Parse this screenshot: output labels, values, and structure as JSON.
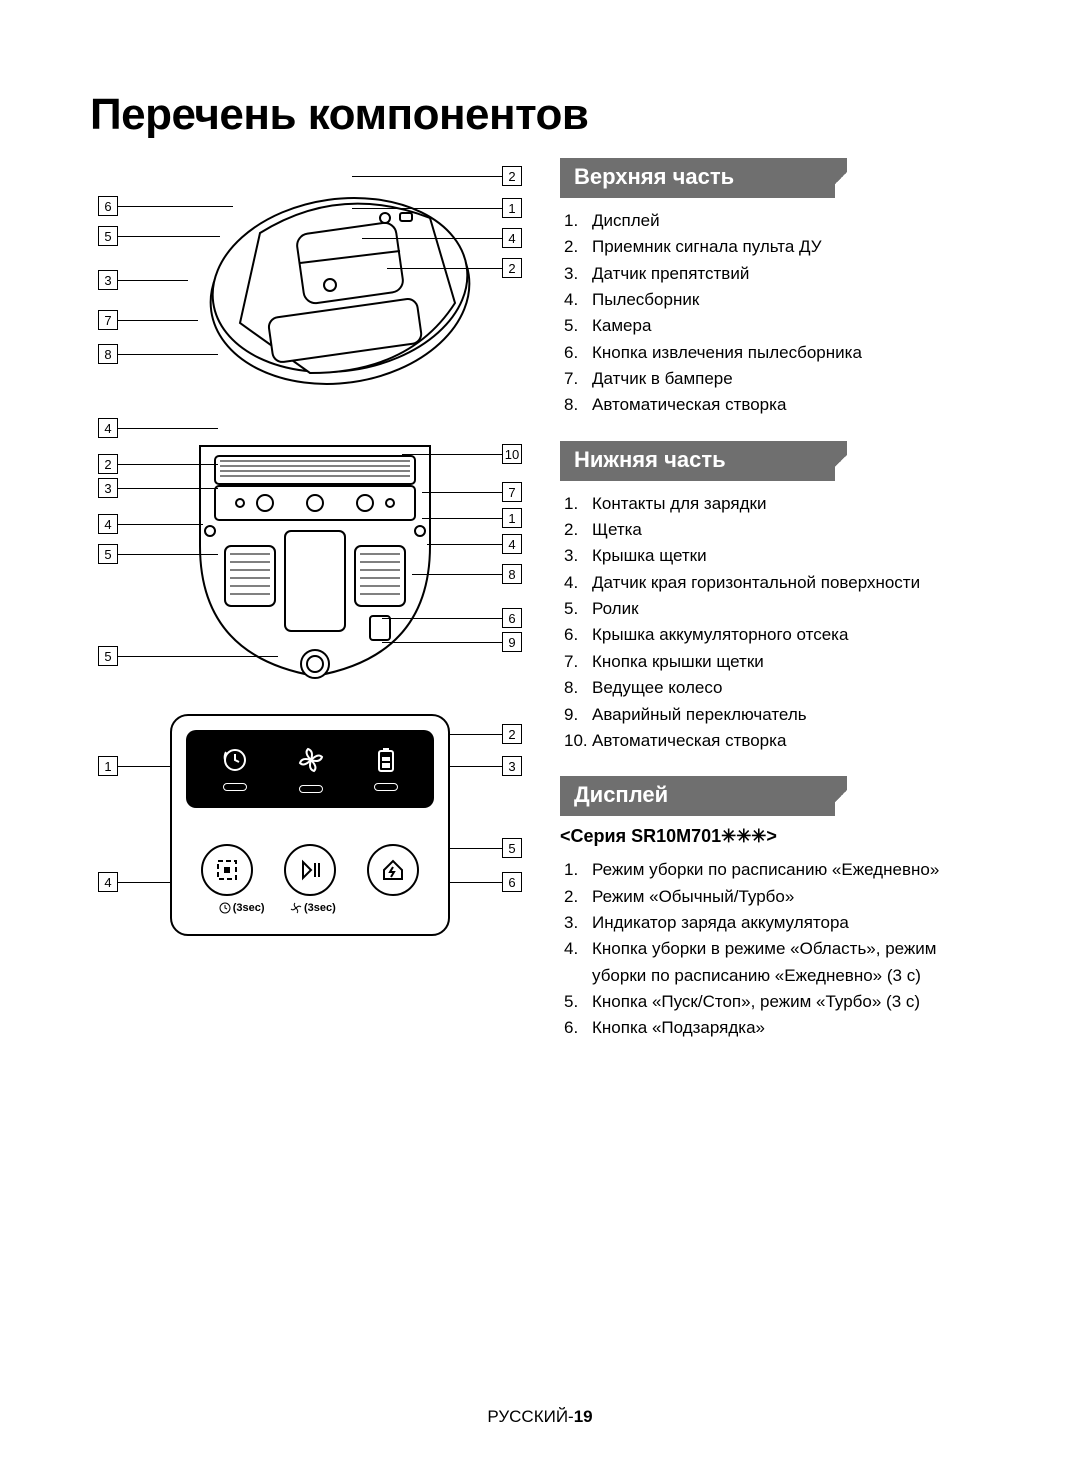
{
  "title": "Перечень компонентов",
  "sections": {
    "top": {
      "header": "Верхняя часть",
      "items": [
        "Дисплей",
        "Приемник сигнала пульта ДУ",
        "Датчик препятствий",
        "Пылесборник",
        "Камера",
        "Кнопка извлечения пылесборника",
        "Датчик в бампере",
        "Автоматическая створка"
      ]
    },
    "bottom": {
      "header": "Нижняя часть",
      "items": [
        "Контакты для зарядки",
        "Щетка",
        "Крышка щетки",
        "Датчик края горизонтальной поверхности",
        "Ролик",
        "Крышка аккумуляторного отсека",
        "Кнопка крышки щетки",
        "Ведущее колесо",
        "Аварийный переключатель",
        "Автоматическая створка"
      ]
    },
    "display": {
      "header": "Дисплей",
      "subheading": "<Серия SR10M701✳✳✳>",
      "items": [
        "Режим уборки по расписанию «Ежедневно»",
        "Режим «Обычный/Турбо»",
        "Индикатор заряда аккумулятора",
        "Кнопка уборки в режиме «Область», режим уборки по расписанию «Ежедневно» (3 с)",
        "Кнопка «Пуск/Стоп», режим «Турбо» (3 с)",
        "Кнопка «Подзарядка»"
      ],
      "sub_labels": [
        "(3sec)",
        "(3sec)"
      ]
    }
  },
  "diagram_top": {
    "left_callouts": [
      "6",
      "5",
      "3",
      "7",
      "8"
    ],
    "right_callouts": [
      "2",
      "1",
      "4",
      "2"
    ]
  },
  "diagram_bottom": {
    "left_callouts": [
      "4",
      "2",
      "3",
      "4",
      "5",
      "5"
    ],
    "right_callouts": [
      "10",
      "7",
      "1",
      "4",
      "8",
      "6",
      "9"
    ]
  },
  "diagram_display": {
    "left_callouts": [
      "1",
      "4"
    ],
    "right_callouts": [
      "2",
      "3",
      "5",
      "6"
    ]
  },
  "footer": {
    "lang": "РУССКИЙ-",
    "page": "19"
  },
  "colors": {
    "header_bg": "#6f6f6f",
    "header_text": "#ffffff",
    "text": "#000000",
    "page_bg": "#ffffff"
  }
}
